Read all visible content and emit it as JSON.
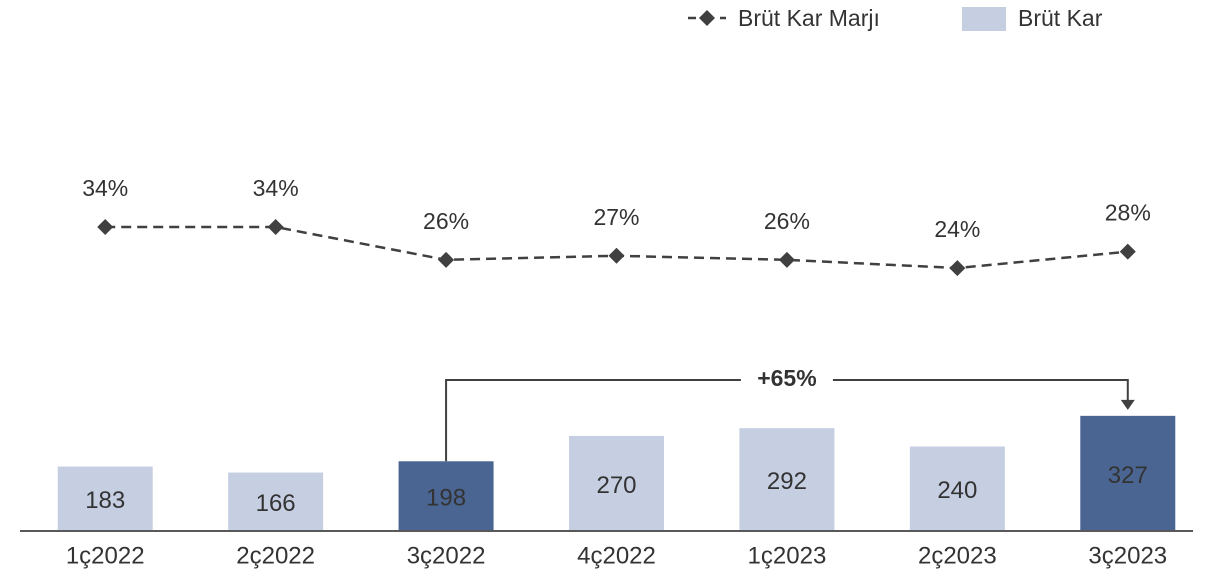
{
  "chart_data": {
    "type": "bar_line",
    "categories": [
      "1ç2022",
      "2ç2022",
      "3ç2022",
      "4ç2022",
      "1ç2023",
      "2ç2023",
      "3ç2023"
    ],
    "series": [
      {
        "name": "Brüt Kar",
        "type": "bar",
        "color": "#c5cfe1",
        "colors": [
          "#c5cfe1",
          "#c5cfe1",
          "#4a6592",
          "#c5cfe1",
          "#c5cfe1",
          "#c5cfe1",
          "#4a6592"
        ],
        "values": [
          183,
          166,
          198,
          270,
          292,
          240,
          327
        ]
      },
      {
        "name": "Brüt Kar Marjı",
        "type": "line",
        "axis": "y2",
        "color": "#404040",
        "values": [
          34,
          34,
          26,
          27,
          26,
          24,
          28
        ],
        "value_labels": [
          "34%",
          "34%",
          "26%",
          "27%",
          "26%",
          "24%",
          "28%"
        ]
      }
    ],
    "ylim": [
      0,
      1400
    ],
    "y2lim": [
      -40,
      80
    ],
    "annotation": "+65%"
  }
}
